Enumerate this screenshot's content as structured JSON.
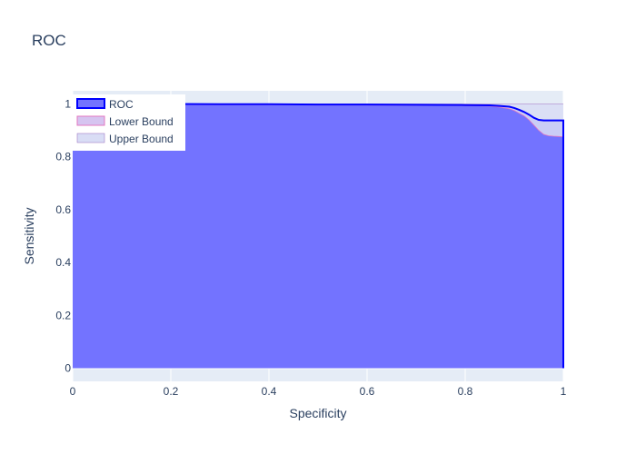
{
  "chart_data": {
    "type": "area",
    "title": "ROC",
    "xlabel": "Specificity",
    "ylabel": "Sensitivity",
    "xlim": [
      0,
      1
    ],
    "ylim": [
      -0.05,
      1.05
    ],
    "xticks": [
      "0",
      "0.2",
      "0.4",
      "0.6",
      "0.8",
      "1"
    ],
    "xtick_values": [
      0,
      0.2,
      0.4,
      0.6,
      0.8,
      1
    ],
    "yticks": [
      "0",
      "0.2",
      "0.4",
      "0.6",
      "0.8",
      "1"
    ],
    "ytick_values": [
      0,
      0.2,
      0.4,
      0.6,
      0.8,
      1
    ],
    "grid": true,
    "legend_position": "top-left",
    "plot_bg": "#e5ecf6",
    "series": [
      {
        "name": "ROC",
        "color": "#0000ff",
        "fill_color": "#7373ff",
        "x": [
          0,
          0.1,
          0.2,
          0.3,
          0.4,
          0.5,
          0.6,
          0.7,
          0.8,
          0.85,
          0.87,
          0.89,
          0.9,
          0.91,
          0.92,
          0.93,
          0.94,
          0.95,
          0.96,
          0.97,
          0.98,
          0.99,
          1.0,
          1.0
        ],
        "y": [
          1.0,
          1.0,
          1.0,
          0.999,
          0.999,
          0.998,
          0.998,
          0.997,
          0.996,
          0.995,
          0.993,
          0.99,
          0.985,
          0.978,
          0.97,
          0.96,
          0.948,
          0.94,
          0.938,
          0.938,
          0.938,
          0.938,
          0.938,
          0.0
        ]
      },
      {
        "name": "Lower Bound",
        "color": "#e377c2",
        "fill_color": "#d6c4f0",
        "x": [
          0,
          0.1,
          0.2,
          0.3,
          0.4,
          0.5,
          0.6,
          0.7,
          0.8,
          0.85,
          0.87,
          0.89,
          0.9,
          0.91,
          0.92,
          0.93,
          0.94,
          0.95,
          0.96,
          0.97,
          0.98,
          0.99,
          1.0
        ],
        "y": [
          0.998,
          0.998,
          0.998,
          0.997,
          0.997,
          0.996,
          0.996,
          0.995,
          0.994,
          0.992,
          0.988,
          0.982,
          0.975,
          0.965,
          0.955,
          0.94,
          0.92,
          0.9,
          0.885,
          0.88,
          0.878,
          0.877,
          0.876
        ]
      },
      {
        "name": "Upper Bound",
        "color": "#9467bd",
        "fill_color": "#d9ddf5",
        "x": [
          0,
          0.1,
          0.2,
          0.3,
          0.4,
          0.5,
          0.6,
          0.7,
          0.8,
          0.85,
          0.87,
          0.89,
          0.9,
          0.91,
          0.92,
          0.93,
          0.94,
          0.95,
          0.96,
          0.97,
          0.98,
          0.99,
          1.0
        ],
        "y": [
          1.0,
          1.0,
          1.0,
          1.0,
          1.0,
          1.0,
          1.0,
          1.0,
          1.0,
          1.0,
          1.0,
          1.0,
          1.0,
          1.0,
          1.0,
          1.0,
          1.0,
          1.0,
          1.0,
          1.0,
          1.0,
          1.0,
          1.0
        ]
      }
    ]
  }
}
